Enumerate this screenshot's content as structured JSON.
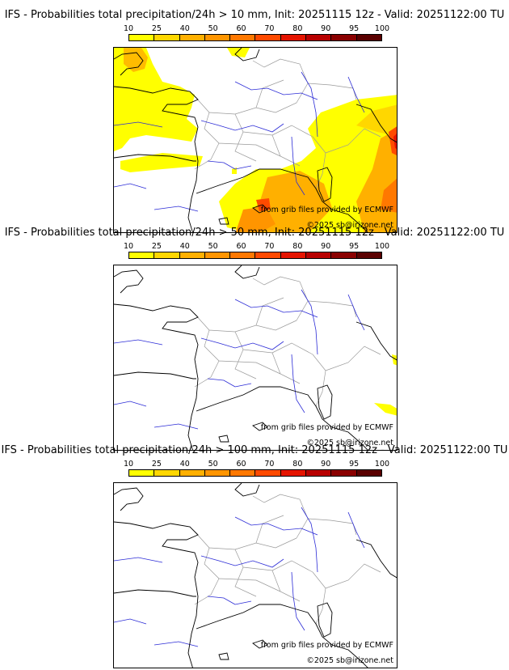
{
  "colorbar": {
    "labels": [
      "10",
      "25",
      "40",
      "50",
      "60",
      "70",
      "80",
      "90",
      "95",
      "100"
    ],
    "colors": [
      "#ffff00",
      "#ffd700",
      "#ffb000",
      "#ff9500",
      "#ff7800",
      "#ff4a00",
      "#e51400",
      "#b80000",
      "#8a0000",
      "#5a0000"
    ]
  },
  "panels": [
    {
      "title": "IFS - Probabilities total precipitation/24h > 10 mm, Init: 20251115 12z - Valid: 20251122:00 TU",
      "credit_source": "from grib files provided by ECMWF",
      "credit_copyright": "©2025 sb@irizone.net"
    },
    {
      "title": "IFS - Probabilities total precipitation/24h > 50 mm, Init: 20251115 12z - Valid: 20251122:00 TU",
      "credit_source": "from grib files provided by ECMWF",
      "credit_copyright": "©2025 sb@irizone.net"
    },
    {
      "title": "IFS - Probabilities total precipitation/24h > 100 mm, Init: 20251115 12z - Valid: 20251122:00 TU",
      "credit_source": "from grib files provided by ECMWF",
      "credit_copyright": "©2025 sb@irizone.net"
    }
  ],
  "colors": {
    "coast": "#000000",
    "rivers": "#2b2bd6",
    "borders": "#9a9a9a"
  }
}
